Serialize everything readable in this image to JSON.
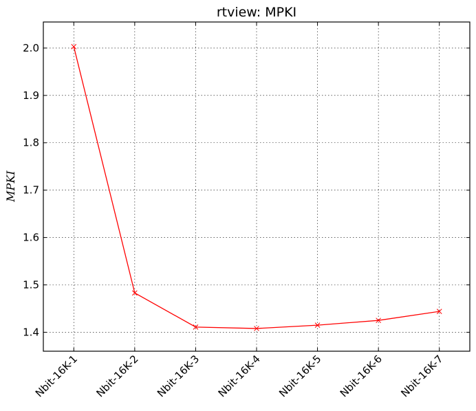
{
  "chart_data": {
    "type": "line",
    "title": "rtview: MPKI",
    "xlabel": "",
    "ylabel": "MPKI",
    "categories": [
      "Nbit-16K-1",
      "Nbit-16K-2",
      "Nbit-16K-3",
      "Nbit-16K-4",
      "Nbit-16K-5",
      "Nbit-16K-6",
      "Nbit-16K-7"
    ],
    "series": [
      {
        "values": [
          2.003,
          1.483,
          1.411,
          1.408,
          1.415,
          1.425,
          1.444
        ],
        "color": "#ff0000",
        "marker": "x"
      }
    ],
    "ylim": [
      1.36,
      2.055
    ],
    "yticks": [
      "1.4",
      "1.5",
      "1.6",
      "1.7",
      "1.8",
      "1.9",
      "2.0"
    ],
    "grid": true,
    "legend": "none"
  }
}
